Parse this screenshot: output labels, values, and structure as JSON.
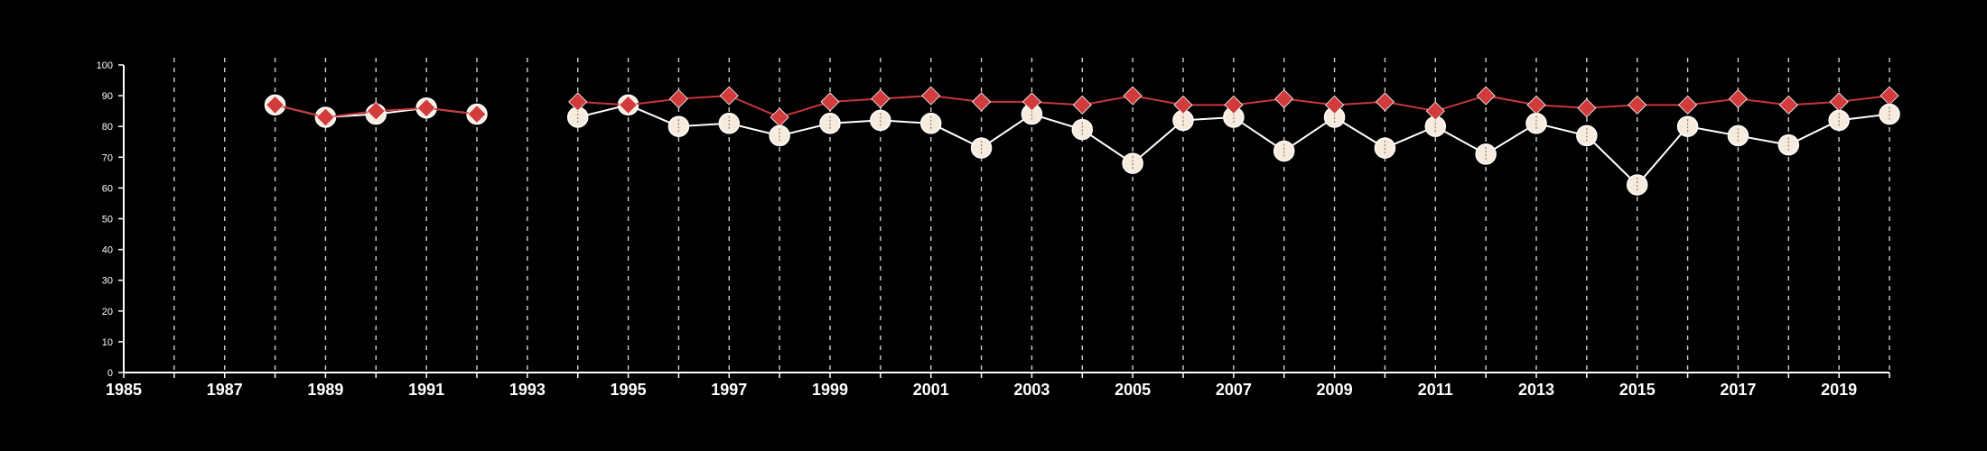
{
  "chart_data": {
    "type": "line",
    "title": "",
    "xlabel": "",
    "ylabel": "",
    "xlim": [
      1985,
      2020
    ],
    "ylim": [
      0,
      100
    ],
    "x_ticks": [
      1985,
      1987,
      1989,
      1991,
      1993,
      1995,
      1997,
      1999,
      2001,
      2003,
      2005,
      2007,
      2009,
      2011,
      2013,
      2015,
      2017,
      2019
    ],
    "y_ticks": [
      0,
      10,
      20,
      30,
      40,
      50,
      60,
      70,
      80,
      90,
      100
    ],
    "grid": "vertical dashed lines at every year",
    "legend": "none",
    "series": [
      {
        "marker": "circle",
        "color": "#ffffff",
        "marker_fill": "#f7ebdd",
        "points": [
          [
            1988,
            87
          ],
          [
            1989,
            83
          ],
          [
            1990,
            84
          ],
          [
            1991,
            86
          ],
          [
            1992,
            84
          ],
          null,
          [
            1994,
            83
          ],
          [
            1995,
            87
          ],
          [
            1996,
            80
          ],
          [
            1997,
            81
          ],
          [
            1998,
            77
          ],
          [
            1999,
            81
          ],
          [
            2000,
            82
          ],
          [
            2001,
            81
          ],
          [
            2002,
            73
          ],
          [
            2003,
            84
          ],
          [
            2004,
            79
          ],
          [
            2005,
            68
          ],
          [
            2006,
            82
          ],
          [
            2007,
            83
          ],
          [
            2008,
            72
          ],
          [
            2009,
            83
          ],
          [
            2010,
            73
          ],
          [
            2011,
            80
          ],
          [
            2012,
            71
          ],
          [
            2013,
            81
          ],
          [
            2014,
            77
          ],
          [
            2015,
            61
          ],
          [
            2016,
            80
          ],
          [
            2017,
            77
          ],
          [
            2018,
            74
          ],
          [
            2019,
            82
          ],
          [
            2020,
            84
          ]
        ]
      },
      {
        "marker": "diamond",
        "color": "#c8363a",
        "marker_fill": "#d13b3b",
        "points": [
          [
            1988,
            87
          ],
          [
            1989,
            83
          ],
          [
            1990,
            85
          ],
          [
            1991,
            86
          ],
          [
            1992,
            84
          ],
          null,
          [
            1994,
            88
          ],
          [
            1995,
            87
          ],
          [
            1996,
            89
          ],
          [
            1997,
            90
          ],
          [
            1998,
            83
          ],
          [
            1999,
            88
          ],
          [
            2000,
            89
          ],
          [
            2001,
            90
          ],
          [
            2002,
            88
          ],
          [
            2003,
            88
          ],
          [
            2004,
            87
          ],
          [
            2005,
            90
          ],
          [
            2006,
            87
          ],
          [
            2007,
            87
          ],
          [
            2008,
            89
          ],
          [
            2009,
            87
          ],
          [
            2010,
            88
          ],
          [
            2011,
            85
          ],
          [
            2012,
            90
          ],
          [
            2013,
            87
          ],
          [
            2014,
            86
          ],
          [
            2015,
            87
          ],
          [
            2016,
            87
          ],
          [
            2017,
            89
          ],
          [
            2018,
            87
          ],
          [
            2019,
            88
          ],
          [
            2020,
            90
          ]
        ]
      }
    ]
  }
}
